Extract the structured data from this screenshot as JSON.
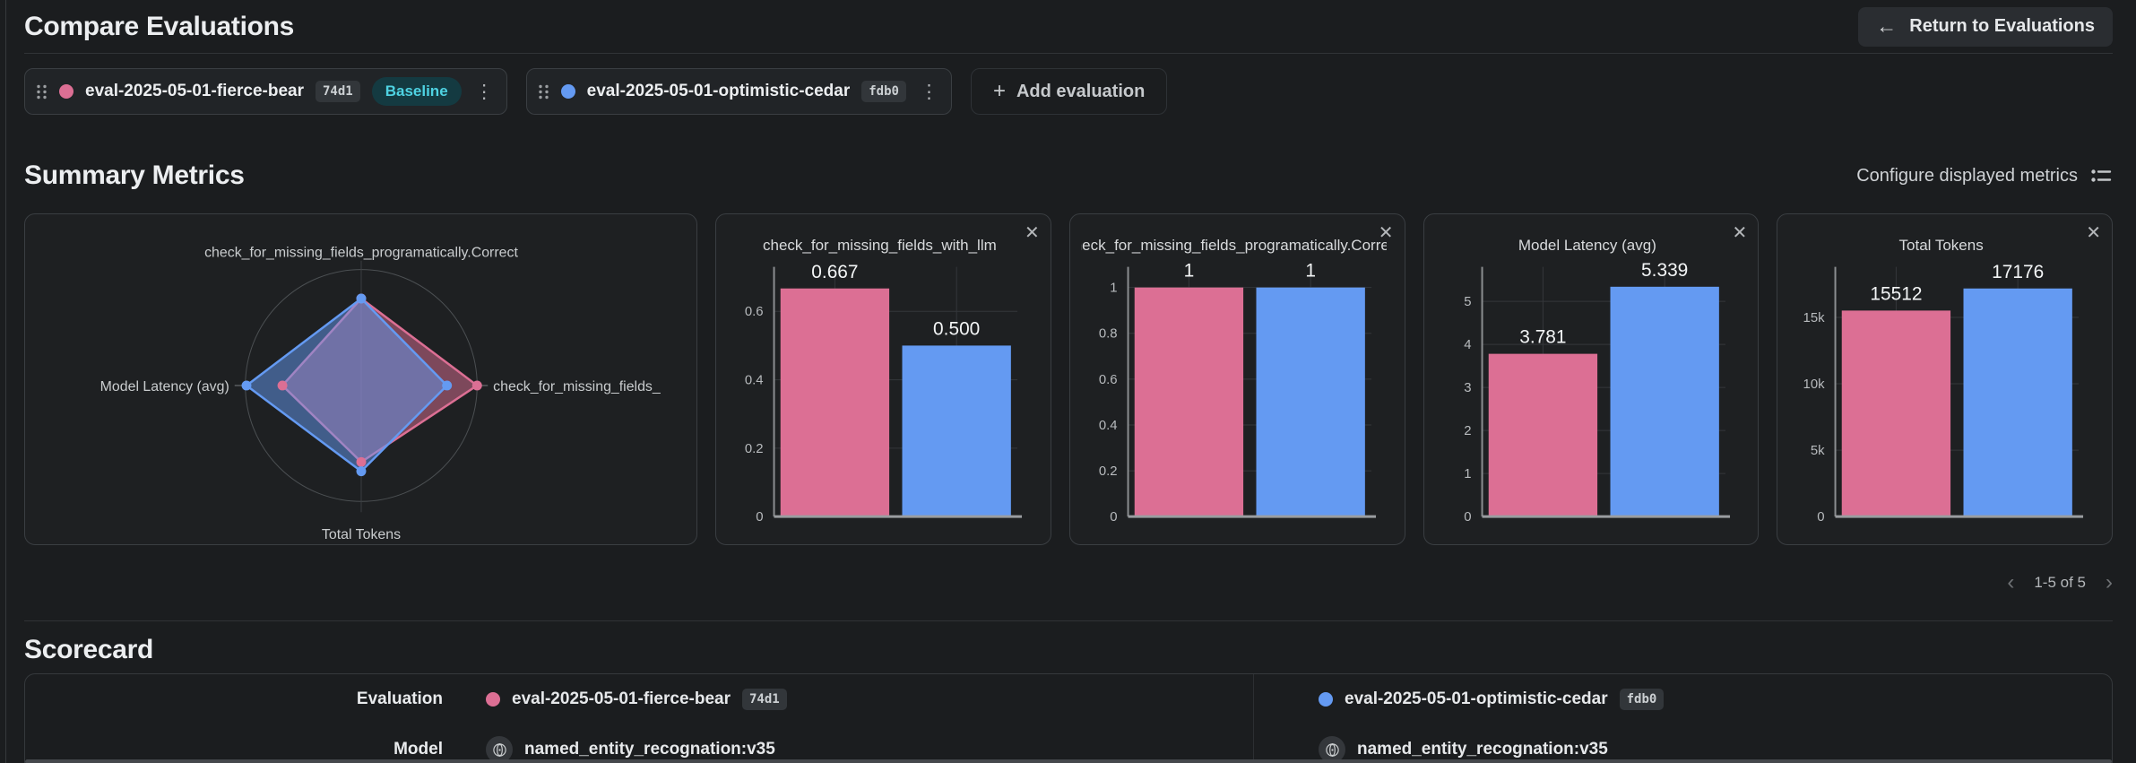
{
  "header": {
    "title": "Compare Evaluations",
    "return_button": "Return to Evaluations"
  },
  "toolbar": {
    "evaluations": [
      {
        "name": "eval-2025-05-01-fierce-bear",
        "id": "74d1",
        "badge": "Baseline",
        "color": "#dc6f94"
      },
      {
        "name": "eval-2025-05-01-optimistic-cedar",
        "id": "fdb0",
        "color": "#649af2"
      }
    ],
    "add_button": "Add evaluation"
  },
  "summary": {
    "title": "Summary Metrics",
    "configure_button": "Configure displayed metrics",
    "pagination": {
      "range": "1-5 of 5",
      "prev": "‹",
      "next": "›"
    }
  },
  "chart_data": [
    {
      "type": "radar",
      "axes": [
        "check_for_missing_fields_programatically.Correct",
        "check_for_missing_fields_",
        "Total Tokens",
        "Model Latency (avg)"
      ],
      "rmax": 1,
      "note": "values are fraction of outer ring radius, axis order: top, right, bottom, left",
      "series": [
        {
          "name": "eval-2025-05-01-fierce-bear",
          "color": "#dc6f94",
          "values": [
            0.75,
            1.0,
            0.66,
            0.68
          ]
        },
        {
          "name": "eval-2025-05-01-optimistic-cedar",
          "color": "#649af2",
          "values": [
            0.75,
            0.74,
            0.74,
            0.99
          ]
        }
      ]
    },
    {
      "type": "bar",
      "title": "check_for_missing_fields_with_llm",
      "categories": [
        "eval-2025-05-01-fierce-bear",
        "eval-2025-05-01-optimistic-cedar"
      ],
      "values": [
        0.667,
        0.5
      ],
      "value_labels": [
        "0.667",
        "0.500"
      ],
      "yticks": [
        0,
        0.2,
        0.4,
        0.6
      ],
      "ytick_labels": [
        "0",
        "0.2",
        "0.4",
        "0.6"
      ],
      "ymax": 0.73,
      "colors": [
        "#dc6f94",
        "#649af2"
      ]
    },
    {
      "type": "bar",
      "title": "check_for_missing_fields_programatically.Correct",
      "categories": [
        "eval-2025-05-01-fierce-bear",
        "eval-2025-05-01-optimistic-cedar"
      ],
      "values": [
        1,
        1
      ],
      "value_labels": [
        "1",
        "1"
      ],
      "yticks": [
        0,
        0.2,
        0.4,
        0.6,
        0.8,
        1
      ],
      "ytick_labels": [
        "0",
        "0.2",
        "0.4",
        "0.6",
        "0.8",
        "1"
      ],
      "ymax": 1.09,
      "colors": [
        "#dc6f94",
        "#649af2"
      ]
    },
    {
      "type": "bar",
      "title": "Model Latency (avg)",
      "categories": [
        "eval-2025-05-01-fierce-bear",
        "eval-2025-05-01-optimistic-cedar"
      ],
      "values": [
        3.781,
        5.339
      ],
      "value_labels": [
        "3.781",
        "5.339"
      ],
      "yticks": [
        0,
        1,
        2,
        3,
        4,
        5
      ],
      "ytick_labels": [
        "0",
        "1",
        "2",
        "3",
        "4",
        "5"
      ],
      "ymax": 5.8,
      "colors": [
        "#dc6f94",
        "#649af2"
      ]
    },
    {
      "type": "bar",
      "title": "Total Tokens",
      "categories": [
        "eval-2025-05-01-fierce-bear",
        "eval-2025-05-01-optimistic-cedar"
      ],
      "values": [
        15512,
        17176
      ],
      "value_labels": [
        "15512",
        "17176"
      ],
      "yticks": [
        0,
        5000,
        10000,
        15000
      ],
      "ytick_labels": [
        "0",
        "5k",
        "10k",
        "15k"
      ],
      "ymax": 18800,
      "colors": [
        "#dc6f94",
        "#649af2"
      ]
    }
  ],
  "scorecard": {
    "title": "Scorecard",
    "row_labels": {
      "evaluation": "Evaluation",
      "model": "Model"
    },
    "columns": [
      {
        "evaluation": "eval-2025-05-01-fierce-bear",
        "id": "74d1",
        "color": "#dc6f94",
        "model": "named_entity_recognation:v35"
      },
      {
        "evaluation": "eval-2025-05-01-optimistic-cedar",
        "id": "fdb0",
        "color": "#649af2",
        "model": "named_entity_recognation:v35"
      }
    ]
  },
  "palette": {
    "pink": "#dc6f94",
    "blue": "#649af2",
    "teal_badge_text": "#4ed2e2",
    "background": "#1b1d1f",
    "card_border": "#3a3e42"
  }
}
